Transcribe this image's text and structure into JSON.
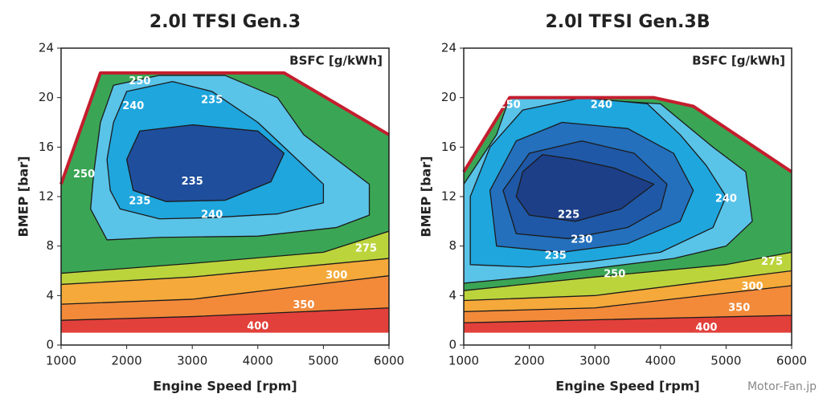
{
  "watermark": "Motor-Fan.jp",
  "chart_data": [
    {
      "type": "contour",
      "title": "2.0l TFSI Gen.3",
      "xlabel": "Engine Speed [rpm]",
      "ylabel": "BMEP [bar]",
      "colorbar_label": "BSFC [g/kWh]",
      "xlim": [
        1000,
        6000
      ],
      "ylim": [
        0,
        24
      ],
      "xticks": [
        1000,
        2000,
        3000,
        4000,
        5000,
        6000
      ],
      "yticks": [
        0,
        4,
        8,
        12,
        16,
        20,
        24
      ],
      "base_color": "#e2403a",
      "boundary": {
        "color": "#c41e2e",
        "x": [
          1000,
          1000,
          1600,
          4400,
          6000,
          6000
        ],
        "y": [
          1,
          13,
          22,
          22,
          17,
          1
        ]
      },
      "levels": [
        {
          "color": "#f28a3a",
          "x": [
            1000,
            3000,
            6000,
            6000,
            1000
          ],
          "y": [
            2,
            2.3,
            3,
            30,
            30
          ]
        },
        {
          "color": "#f4a93a",
          "x": [
            1000,
            3000,
            6000,
            6000,
            1000
          ],
          "y": [
            3.3,
            3.7,
            5.6,
            30,
            30
          ]
        },
        {
          "color": "#bcd43c",
          "x": [
            1000,
            3000,
            6000,
            6000,
            1000
          ],
          "y": [
            4.9,
            5.5,
            7,
            30,
            30
          ]
        },
        {
          "color": "#3aa655",
          "x": [
            1000,
            3000,
            5000,
            6000,
            6000,
            1000
          ],
          "y": [
            5.8,
            6.6,
            7.5,
            9.2,
            30,
            30
          ]
        },
        {
          "color": "#5ac3e8",
          "x": [
            1700,
            2500,
            4000,
            5200,
            5700,
            5700,
            5200,
            4700,
            4300,
            3500,
            2500,
            1800,
            1600,
            1500,
            1450
          ],
          "y": [
            8.5,
            8.7,
            8.8,
            9.5,
            10.5,
            13,
            15,
            17,
            20,
            21.8,
            21.8,
            21,
            18,
            14,
            11
          ]
        },
        {
          "color": "#1fa6dd",
          "x": [
            1900,
            2500,
            3300,
            4300,
            5000,
            5000,
            4600,
            4000,
            3300,
            2700,
            2000,
            1800,
            1700,
            1750
          ],
          "y": [
            11,
            10.2,
            10.3,
            10.6,
            11.5,
            13,
            15,
            18,
            20.5,
            21.3,
            20.5,
            18,
            15,
            12.5
          ]
        },
        {
          "color": "#1f4e9c",
          "x": [
            2100,
            2600,
            3500,
            4200,
            4400,
            4000,
            3000,
            2200,
            2000
          ],
          "y": [
            12.5,
            11.6,
            11.7,
            13.2,
            15.5,
            17.3,
            17.8,
            17.3,
            15
          ]
        }
      ],
      "labels": [
        {
          "value": 250,
          "x": 2200,
          "y": 21.3
        },
        {
          "value": 240,
          "x": 2100,
          "y": 19.3
        },
        {
          "value": 235,
          "x": 3300,
          "y": 19.8
        },
        {
          "value": 235,
          "x": 3000,
          "y": 13.2
        },
        {
          "value": 235,
          "x": 2200,
          "y": 11.6
        },
        {
          "value": 240,
          "x": 3300,
          "y": 10.5
        },
        {
          "value": 250,
          "x": 1350,
          "y": 13.8
        },
        {
          "value": 275,
          "x": 5650,
          "y": 7.8
        },
        {
          "value": 300,
          "x": 5200,
          "y": 5.6
        },
        {
          "value": 350,
          "x": 4700,
          "y": 3.2
        },
        {
          "value": 400,
          "x": 4000,
          "y": 1.5
        }
      ]
    },
    {
      "type": "contour",
      "title": "2.0l TFSI Gen.3B",
      "xlabel": "Engine Speed [rpm]",
      "ylabel": "BMEP [bar]",
      "colorbar_label": "BSFC [g/kWh]",
      "xlim": [
        1000,
        6000
      ],
      "ylim": [
        0,
        24
      ],
      "xticks": [
        1000,
        2000,
        3000,
        4000,
        5000,
        6000
      ],
      "yticks": [
        0,
        4,
        8,
        12,
        16,
        20,
        24
      ],
      "base_color": "#e2403a",
      "boundary": {
        "color": "#c41e2e",
        "x": [
          1000,
          1000,
          1700,
          3900,
          4500,
          6000,
          6000
        ],
        "y": [
          1,
          14,
          20,
          20,
          19.3,
          14,
          1
        ]
      },
      "levels": [
        {
          "color": "#f28a3a",
          "x": [
            1000,
            6000,
            6000,
            1000
          ],
          "y": [
            1.8,
            2.4,
            30,
            30
          ]
        },
        {
          "color": "#f4a93a",
          "x": [
            1000,
            3000,
            6000,
            6000,
            1000
          ],
          "y": [
            2.7,
            3,
            4.8,
            30,
            30
          ]
        },
        {
          "color": "#bcd43c",
          "x": [
            1000,
            3000,
            6000,
            6000,
            1000
          ],
          "y": [
            3.6,
            4,
            6,
            30,
            30
          ]
        },
        {
          "color": "#3aa655",
          "x": [
            1000,
            3000,
            5000,
            6000,
            6000,
            1000
          ],
          "y": [
            4.4,
            5.5,
            6.5,
            7.5,
            30,
            30
          ]
        },
        {
          "color": "#5ac3e8",
          "x": [
            1000,
            2000,
            3000,
            4200,
            5000,
            5400,
            5300,
            4800,
            4000,
            2500,
            1700,
            1500,
            1000
          ],
          "y": [
            5,
            5.5,
            6.2,
            7,
            8,
            10,
            14,
            16,
            19.5,
            20,
            20,
            17,
            13
          ]
        },
        {
          "color": "#1fa6dd",
          "x": [
            1100,
            2000,
            3000,
            4000,
            4800,
            5000,
            4700,
            4300,
            3800,
            2800,
            1900,
            1400,
            1100
          ],
          "y": [
            6.5,
            6.3,
            6.8,
            7.5,
            9.5,
            12,
            14.5,
            17,
            19.5,
            20,
            19,
            16,
            12
          ]
        },
        {
          "color": "#2470bd",
          "x": [
            1500,
            2500,
            3500,
            4300,
            4500,
            4200,
            3500,
            2500,
            1800,
            1400
          ],
          "y": [
            8,
            7.5,
            8.2,
            10,
            12.5,
            15.5,
            17.5,
            18,
            16.5,
            12.5
          ]
        },
        {
          "color": "#1f58a6",
          "x": [
            1800,
            2600,
            3500,
            4000,
            4100,
            3600,
            2800,
            2000,
            1600
          ],
          "y": [
            9,
            8.6,
            9.5,
            11,
            13,
            15.5,
            16.5,
            15.5,
            12.5
          ]
        },
        {
          "color": "#1c3f88",
          "x": [
            2000,
            2700,
            3400,
            3900,
            3300,
            2700,
            2200,
            1900,
            1800
          ],
          "y": [
            10.5,
            10,
            11,
            13,
            14.3,
            15,
            15.4,
            14,
            12
          ]
        }
      ],
      "labels": [
        {
          "value": 250,
          "x": 1700,
          "y": 19.4
        },
        {
          "value": 240,
          "x": 3100,
          "y": 19.4
        },
        {
          "value": 240,
          "x": 5000,
          "y": 11.8
        },
        {
          "value": 225,
          "x": 2600,
          "y": 10.5
        },
        {
          "value": 230,
          "x": 2800,
          "y": 8.5
        },
        {
          "value": 235,
          "x": 2400,
          "y": 7.2
        },
        {
          "value": 250,
          "x": 3300,
          "y": 5.7
        },
        {
          "value": 275,
          "x": 5700,
          "y": 6.7
        },
        {
          "value": 300,
          "x": 5400,
          "y": 4.7
        },
        {
          "value": 350,
          "x": 5200,
          "y": 3.0
        },
        {
          "value": 400,
          "x": 4700,
          "y": 1.4
        }
      ]
    }
  ]
}
